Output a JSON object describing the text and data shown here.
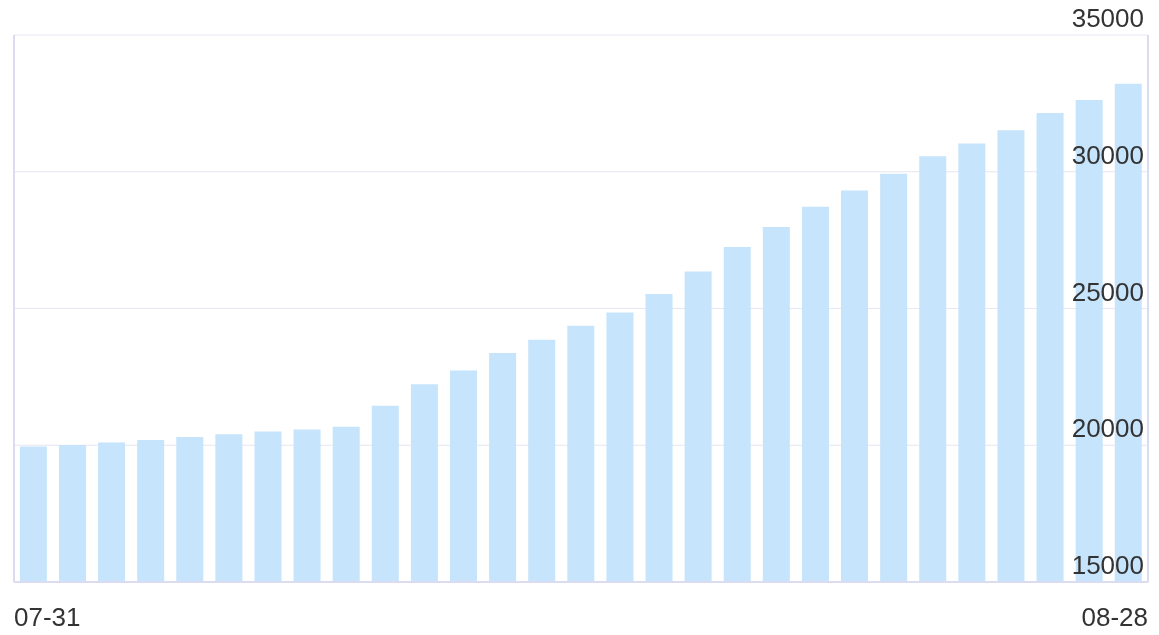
{
  "chart_data": {
    "type": "bar",
    "categories": [
      "07-31",
      null,
      null,
      null,
      null,
      null,
      null,
      null,
      null,
      null,
      null,
      null,
      null,
      null,
      null,
      null,
      null,
      null,
      null,
      null,
      null,
      null,
      null,
      null,
      null,
      null,
      null,
      null,
      "08-28"
    ],
    "values": [
      19950,
      20010,
      20100,
      20190,
      20300,
      20400,
      20500,
      20580,
      20680,
      21440,
      22230,
      22730,
      23370,
      23860,
      24370,
      24850,
      25530,
      26350,
      27250,
      27980,
      28720,
      29310,
      29930,
      30570,
      31030,
      31520,
      32150,
      32620,
      33220
    ],
    "color": "#c6e4fb",
    "ylim": [
      15000,
      35000
    ],
    "yticks": [
      15000,
      20000,
      25000,
      30000,
      35000
    ],
    "grid": "y"
  }
}
